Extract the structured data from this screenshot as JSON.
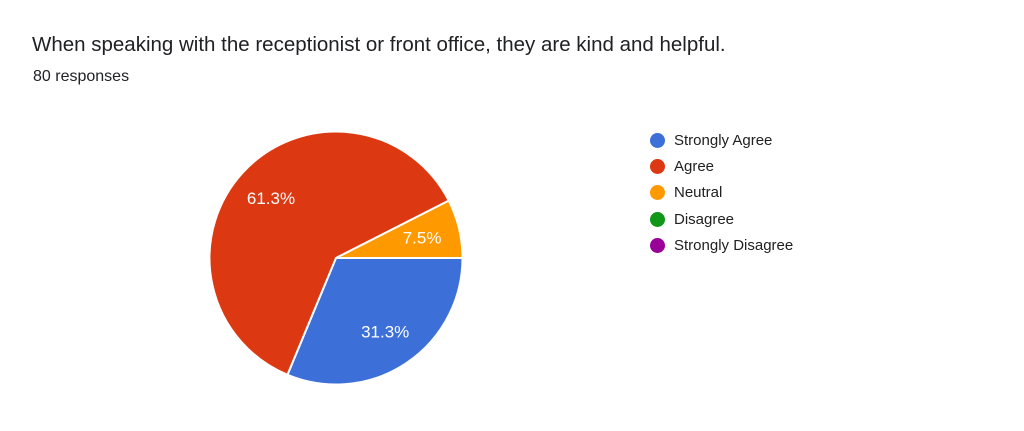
{
  "header": {
    "title": "When speaking with the receptionist or front office, they are kind and helpful.",
    "responses": "80 responses"
  },
  "chart_data": {
    "type": "pie",
    "title": "When speaking with the receptionist or front office, they are kind and helpful.",
    "subtitle": "80 responses",
    "total_responses": 80,
    "start_angle_deg": 0,
    "direction": "clockwise",
    "legend_position": "right",
    "slice_label_color": "#ffffff",
    "slices": [
      {
        "category": "Strongly Agree",
        "value": 31.3,
        "label": "31.3%",
        "color": "#3c6fd7"
      },
      {
        "category": "Agree",
        "value": 61.3,
        "label": "61.3%",
        "color": "#dc3912"
      },
      {
        "category": "Neutral",
        "value": 7.5,
        "label": "7.5%",
        "color": "#ff9900"
      },
      {
        "category": "Disagree",
        "value": 0,
        "label": "",
        "color": "#109618"
      },
      {
        "category": "Strongly Disagree",
        "value": 0,
        "label": "",
        "color": "#990099"
      }
    ]
  }
}
